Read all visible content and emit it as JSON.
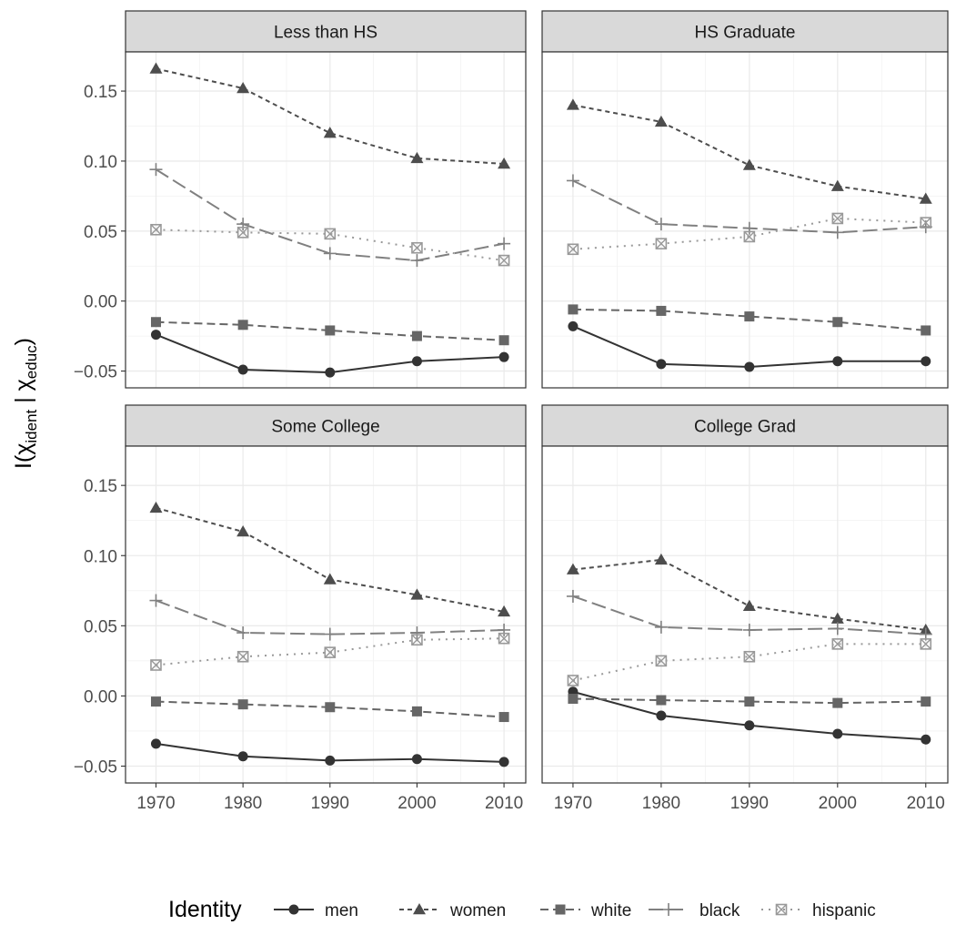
{
  "chart_data": {
    "type": "line",
    "facet_layout": "2x2",
    "shared_x": [
      1970,
      1980,
      1990,
      2000,
      2010
    ],
    "x_ticks": [
      "1970",
      "1980",
      "1990",
      "2000",
      "2010"
    ],
    "y_ticks": [
      "−0.05",
      "0.00",
      "0.05",
      "0.10",
      "0.15"
    ],
    "y_tick_values": [
      -0.05,
      0.0,
      0.05,
      0.1,
      0.15
    ],
    "ylim": [
      -0.062,
      0.178
    ],
    "xlim": [
      1966.5,
      2012.5
    ],
    "ylabel_parts": {
      "main": "I(χ",
      "sub1": "ident",
      "mid": " | χ",
      "sub2": "educ",
      "end": ")"
    },
    "grid": true,
    "legend": {
      "title": "Identity",
      "position": "bottom",
      "entries": [
        {
          "name": "men",
          "color": "#333333",
          "dash": "solid",
          "shape": "circle"
        },
        {
          "name": "women",
          "color": "#4d4d4d",
          "dash": "dotted",
          "shape": "triangle"
        },
        {
          "name": "white",
          "color": "#666666",
          "dash": "dashed",
          "shape": "square"
        },
        {
          "name": "black",
          "color": "#808080",
          "dash": "longdash",
          "shape": "plus"
        },
        {
          "name": "hispanic",
          "color": "#999999",
          "dash": "dot",
          "shape": "squarecross"
        }
      ]
    },
    "panels": [
      {
        "title": "Less than HS",
        "series": [
          {
            "name": "men",
            "values": [
              -0.024,
              -0.049,
              -0.051,
              -0.043,
              -0.04
            ]
          },
          {
            "name": "women",
            "values": [
              0.166,
              0.152,
              0.12,
              0.102,
              0.098
            ]
          },
          {
            "name": "white",
            "values": [
              -0.015,
              -0.017,
              -0.021,
              -0.025,
              -0.028
            ]
          },
          {
            "name": "black",
            "values": [
              0.094,
              0.055,
              0.034,
              0.029,
              0.041
            ]
          },
          {
            "name": "hispanic",
            "values": [
              0.051,
              0.049,
              0.048,
              0.038,
              0.029
            ]
          }
        ]
      },
      {
        "title": "HS Graduate",
        "series": [
          {
            "name": "men",
            "values": [
              -0.018,
              -0.045,
              -0.047,
              -0.043,
              -0.043
            ]
          },
          {
            "name": "women",
            "values": [
              0.14,
              0.128,
              0.097,
              0.082,
              0.073
            ]
          },
          {
            "name": "white",
            "values": [
              -0.006,
              -0.007,
              -0.011,
              -0.015,
              -0.021
            ]
          },
          {
            "name": "black",
            "values": [
              0.086,
              0.055,
              0.052,
              0.049,
              0.053
            ]
          },
          {
            "name": "hispanic",
            "values": [
              0.037,
              0.041,
              0.046,
              0.059,
              0.056
            ]
          }
        ]
      },
      {
        "title": "Some College",
        "series": [
          {
            "name": "men",
            "values": [
              -0.034,
              -0.043,
              -0.046,
              -0.045,
              -0.047
            ]
          },
          {
            "name": "women",
            "values": [
              0.134,
              0.117,
              0.083,
              0.072,
              0.06
            ]
          },
          {
            "name": "white",
            "values": [
              -0.004,
              -0.006,
              -0.008,
              -0.011,
              -0.015
            ]
          },
          {
            "name": "black",
            "values": [
              0.068,
              0.045,
              0.044,
              0.045,
              0.047
            ]
          },
          {
            "name": "hispanic",
            "values": [
              0.022,
              0.028,
              0.031,
              0.04,
              0.041
            ]
          }
        ]
      },
      {
        "title": "College Grad",
        "series": [
          {
            "name": "men",
            "values": [
              0.003,
              -0.014,
              -0.021,
              -0.027,
              -0.031
            ]
          },
          {
            "name": "women",
            "values": [
              0.09,
              0.097,
              0.064,
              0.055,
              0.047
            ]
          },
          {
            "name": "white",
            "values": [
              -0.002,
              -0.003,
              -0.004,
              -0.005,
              -0.004
            ]
          },
          {
            "name": "black",
            "values": [
              0.071,
              0.049,
              0.047,
              0.048,
              0.044
            ]
          },
          {
            "name": "hispanic",
            "values": [
              0.011,
              0.025,
              0.028,
              0.037,
              0.037
            ]
          }
        ]
      }
    ]
  }
}
